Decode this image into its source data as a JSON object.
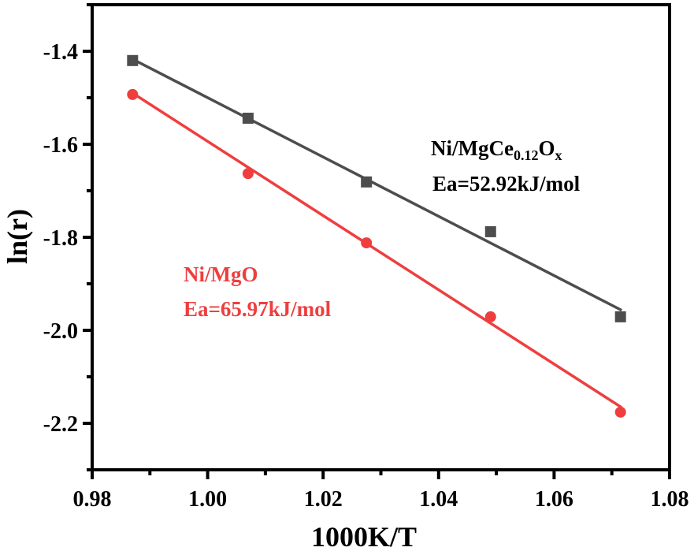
{
  "chart_data": {
    "type": "scatter",
    "title": "",
    "xlabel": "1000K/T",
    "ylabel": "ln(r)",
    "xlim": [
      0.98,
      1.08
    ],
    "ylim": [
      -2.3,
      -1.3
    ],
    "xticks": [
      0.98,
      1.0,
      1.02,
      1.04,
      1.06,
      1.08
    ],
    "xtick_labels": [
      "0.98",
      "1.00",
      "1.02",
      "1.04",
      "1.06",
      "1.08"
    ],
    "yticks": [
      -1.4,
      -1.6,
      -1.8,
      -2.0,
      -2.2
    ],
    "ytick_labels": [
      "-1.4",
      "-1.6",
      "-1.8",
      "-2.0",
      "-2.2"
    ],
    "grid": false,
    "series": [
      {
        "name": "Ni/MgCe0.12Ox",
        "color": "#4d4d4d",
        "marker": "square",
        "x": [
          0.987,
          1.007,
          1.0275,
          1.049,
          1.0715
        ],
        "y": [
          -1.42,
          -1.544,
          -1.681,
          -1.788,
          -1.971
        ],
        "fit": {
          "x": [
            0.987,
            1.0717
          ],
          "y": [
            -1.417,
            -1.957
          ]
        }
      },
      {
        "name": "Ni/MgO",
        "color": "#ef3e3e",
        "marker": "circle",
        "x": [
          0.987,
          1.007,
          1.0275,
          1.049,
          1.0715
        ],
        "y": [
          -1.493,
          -1.663,
          -1.812,
          -1.971,
          -2.176
        ],
        "fit": {
          "x": [
            0.987,
            1.0717
          ],
          "y": [
            -1.49,
            -2.166
          ]
        }
      }
    ],
    "annotations": {
      "black_name_main": "Ni/MgCe",
      "black_name_sub1": "0.12",
      "black_name_o": "O",
      "black_name_sub2": "x",
      "black_ea": "Ea=52.92kJ/mol",
      "red_name": "Ni/MgO",
      "red_ea": "Ea=65.97kJ/mol"
    }
  }
}
